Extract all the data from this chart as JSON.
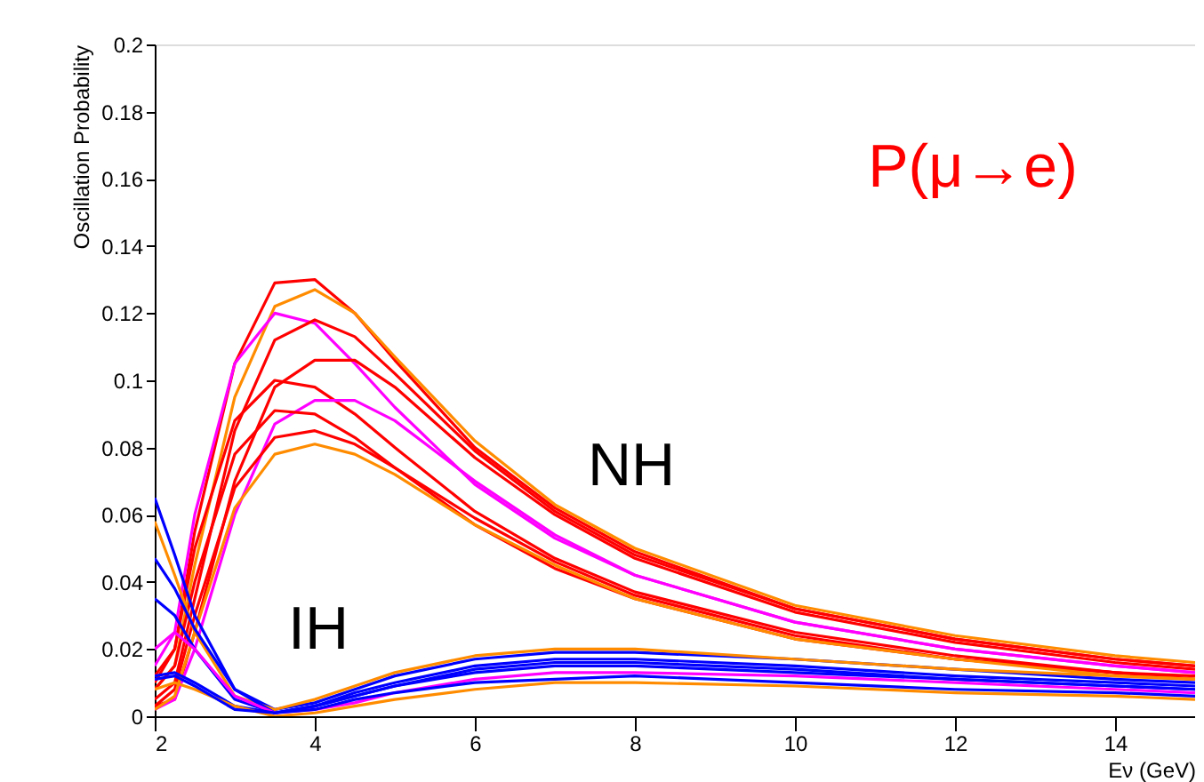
{
  "chart_data": {
    "type": "line",
    "xlabel": "Eν (GeV)",
    "ylabel": "Oscillation Probability",
    "x": [
      2,
      2.25,
      2.5,
      3,
      3.5,
      4,
      4.5,
      5,
      6,
      7,
      8,
      10,
      12,
      14,
      15
    ],
    "xlim": [
      2,
      15
    ],
    "xticks": [
      2,
      4,
      6,
      8,
      10,
      12,
      14
    ],
    "ylim": [
      0,
      0.2
    ],
    "yticks": [
      0,
      0.02,
      0.04,
      0.06,
      0.08,
      0.1,
      0.12,
      0.14,
      0.16,
      0.18,
      0.2
    ],
    "grid": false,
    "legend": false,
    "marker": "none",
    "line_style": "solid",
    "annotations": [
      "NH",
      "IH",
      "P(μ→e)"
    ],
    "series": [
      {
        "color": "#ff0000",
        "values": [
          0.012,
          0.02,
          0.055,
          0.105,
          0.129,
          0.13,
          0.12,
          0.106,
          0.08,
          0.062,
          0.049,
          0.032,
          0.023,
          0.017,
          0.015
        ]
      },
      {
        "color": "#ff8c00",
        "values": [
          0.008,
          0.015,
          0.045,
          0.095,
          0.122,
          0.127,
          0.12,
          0.107,
          0.082,
          0.063,
          0.05,
          0.033,
          0.024,
          0.018,
          0.016
        ]
      },
      {
        "color": "#ff00ff",
        "values": [
          0.015,
          0.025,
          0.06,
          0.105,
          0.12,
          0.117,
          0.105,
          0.092,
          0.069,
          0.053,
          0.042,
          0.028,
          0.02,
          0.015,
          0.013
        ]
      },
      {
        "color": "#ff0000",
        "values": [
          0.005,
          0.01,
          0.035,
          0.085,
          0.112,
          0.118,
          0.113,
          0.102,
          0.079,
          0.061,
          0.048,
          0.032,
          0.023,
          0.017,
          0.015
        ]
      },
      {
        "color": "#ff0000",
        "values": [
          0.003,
          0.005,
          0.025,
          0.07,
          0.098,
          0.106,
          0.106,
          0.098,
          0.077,
          0.06,
          0.047,
          0.031,
          0.022,
          0.016,
          0.014
        ]
      },
      {
        "color": "#ff0000",
        "values": [
          0.01,
          0.02,
          0.05,
          0.088,
          0.1,
          0.098,
          0.09,
          0.08,
          0.061,
          0.047,
          0.037,
          0.025,
          0.018,
          0.013,
          0.012
        ]
      },
      {
        "color": "#ff00ff",
        "values": [
          0.002,
          0.005,
          0.02,
          0.06,
          0.087,
          0.094,
          0.094,
          0.088,
          0.07,
          0.054,
          0.042,
          0.028,
          0.02,
          0.015,
          0.013
        ]
      },
      {
        "color": "#ff0000",
        "values": [
          0.008,
          0.015,
          0.04,
          0.078,
          0.091,
          0.09,
          0.083,
          0.074,
          0.057,
          0.044,
          0.035,
          0.023,
          0.017,
          0.013,
          0.011
        ]
      },
      {
        "color": "#ff0000",
        "values": [
          0.003,
          0.008,
          0.03,
          0.068,
          0.083,
          0.085,
          0.081,
          0.074,
          0.059,
          0.046,
          0.036,
          0.024,
          0.017,
          0.013,
          0.011
        ]
      },
      {
        "color": "#ff8c00",
        "values": [
          0.002,
          0.006,
          0.025,
          0.062,
          0.078,
          0.081,
          0.078,
          0.072,
          0.057,
          0.045,
          0.035,
          0.023,
          0.017,
          0.012,
          0.011
        ]
      },
      {
        "color": "#0000ff",
        "values": [
          0.065,
          0.048,
          0.03,
          0.008,
          0.002,
          0.004,
          0.008,
          0.012,
          0.017,
          0.019,
          0.019,
          0.017,
          0.014,
          0.011,
          0.01
        ]
      },
      {
        "color": "#ff8c00",
        "values": [
          0.058,
          0.042,
          0.025,
          0.006,
          0.002,
          0.005,
          0.009,
          0.013,
          0.018,
          0.02,
          0.02,
          0.017,
          0.014,
          0.012,
          0.011
        ]
      },
      {
        "color": "#0000ff",
        "values": [
          0.047,
          0.038,
          0.026,
          0.008,
          0.001,
          0.003,
          0.007,
          0.01,
          0.015,
          0.017,
          0.017,
          0.015,
          0.012,
          0.01,
          0.009
        ]
      },
      {
        "color": "#0000ff",
        "values": [
          0.035,
          0.03,
          0.02,
          0.005,
          0.001,
          0.003,
          0.006,
          0.009,
          0.013,
          0.015,
          0.015,
          0.013,
          0.011,
          0.009,
          0.008
        ]
      },
      {
        "color": "#ff00ff",
        "values": [
          0.02,
          0.025,
          0.02,
          0.006,
          0.001,
          0.002,
          0.004,
          0.007,
          0.011,
          0.013,
          0.013,
          0.012,
          0.01,
          0.008,
          0.007
        ]
      },
      {
        "color": "#0000ff",
        "values": [
          0.012,
          0.013,
          0.01,
          0.003,
          0.001,
          0.002,
          0.005,
          0.007,
          0.01,
          0.011,
          0.012,
          0.01,
          0.008,
          0.007,
          0.006
        ]
      },
      {
        "color": "#ff8c00",
        "values": [
          0.008,
          0.01,
          0.008,
          0.003,
          0.0,
          0.001,
          0.003,
          0.005,
          0.008,
          0.01,
          0.01,
          0.009,
          0.007,
          0.006,
          0.005
        ]
      },
      {
        "color": "#0000ff",
        "values": [
          0.011,
          0.012,
          0.009,
          0.002,
          0.001,
          0.003,
          0.006,
          0.009,
          0.014,
          0.016,
          0.016,
          0.014,
          0.011,
          0.009,
          0.008
        ]
      }
    ]
  }
}
